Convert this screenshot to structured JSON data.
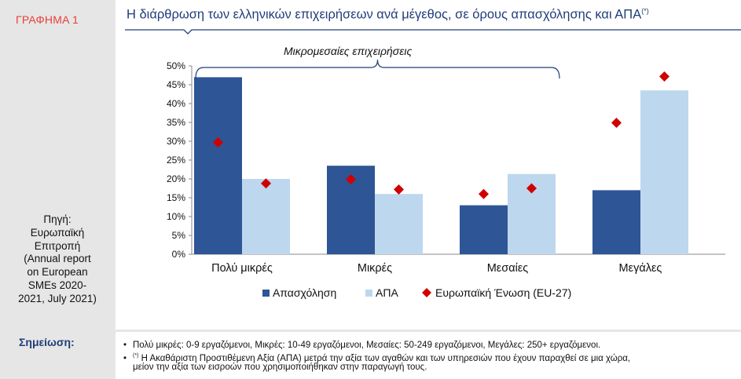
{
  "figure_label": "ΓΡΑΦΗΜΑ 1",
  "source_lines": [
    "Πηγή:",
    "Ευρωπαϊκή",
    "Επιτροπή",
    "(Annual report",
    "on European",
    "SMEs 2020-",
    "2021, July 2021)"
  ],
  "title": "Η διάρθρωση των ελληνικών επιχειρήσεων ανά μέγεθος, σε όρους απασχόλησης και ΑΠΑ",
  "title_marker": "(*)",
  "bracket_label": "Μικρομεσαίες επιχειρήσεις",
  "notes_label": "Σημείωση:",
  "notes": {
    "bullet": "•",
    "line1": "Πολύ μικρές: 0-9 εργαζόμενοι, Μικρές: 10-49 εργαζόμενοι, Μεσαίες: 50-249  εργαζόμενοι, Μεγάλες: 250+ εργαζόμενοι.",
    "line2_marker": "(*)",
    "line2": " Η Ακαθάριστη Προστιθέμενη Αξία (ΑΠΑ) μετρά την αξία των αγαθών και των υπηρεσιών που έχουν παραχθεί σε μια χώρα,",
    "line3": "μείον την αξία των εισροών που χρησιμοποιήθηκαν στην παραγωγή τους."
  },
  "colors": {
    "employment": "#2e5596",
    "gva": "#bdd7ee",
    "eu": "#d00000",
    "title": "#1f3d7a"
  },
  "chart_data": {
    "type": "bar",
    "categories": [
      "Πολύ μικρές",
      "Μικρές",
      "Μεσαίες",
      "Μεγάλες"
    ],
    "series": [
      {
        "name": "Απασχόληση",
        "kind": "bar",
        "values": [
          47,
          23.5,
          13,
          17
        ]
      },
      {
        "name": "ΑΠΑ",
        "kind": "bar",
        "values": [
          20,
          16,
          21.3,
          43.5
        ]
      },
      {
        "name": "Ευρωπαϊκή Ένωση (EU-27)",
        "kind": "marker",
        "values_employment": [
          29.7,
          19.9,
          16,
          34.9
        ],
        "values_gva": [
          18.8,
          17.2,
          17.5,
          47.2
        ]
      }
    ],
    "ylim": [
      0,
      50
    ],
    "yticks": [
      "0%",
      "5%",
      "10%",
      "15%",
      "20%",
      "25%",
      "30%",
      "35%",
      "40%",
      "45%",
      "50%"
    ],
    "legend_position": "bottom",
    "grid": false
  }
}
